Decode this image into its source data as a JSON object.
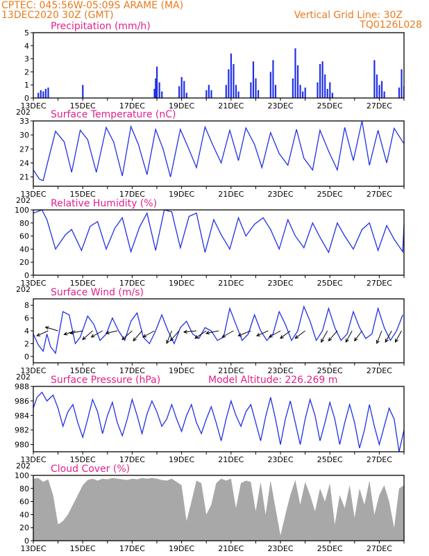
{
  "header": {
    "line1_left": "CPTEC:   045:56W-05:09S   ARAME (MA)",
    "line2_left": "13DEC2020 30Z (GMT)",
    "line1_right": "Vertical Grid Line: 30Z",
    "line2_right": "TQ0126L028"
  },
  "colors": {
    "header": "#e87a1e",
    "title": "#e0208c",
    "line": "#1f2fe6",
    "cloud": "#a8a8a8",
    "wind_arrow": "#000000"
  },
  "x_axis": {
    "start_day": 13,
    "end_day": 28,
    "tick_labels": [
      {
        "day": 13,
        "label": "13DEC"
      },
      {
        "day": 15,
        "label": "15DEC"
      },
      {
        "day": 17,
        "label": "17DEC"
      },
      {
        "day": 19,
        "label": "19DEC"
      },
      {
        "day": 21,
        "label": "21DEC"
      },
      {
        "day": 23,
        "label": "23DEC"
      },
      {
        "day": 25,
        "label": "25DEC"
      },
      {
        "day": 27,
        "label": "27DEC"
      }
    ],
    "year_fragment": "202"
  },
  "chart_data": [
    {
      "id": "precip",
      "type": "bar",
      "title": "Precipitation (mm/h)",
      "ylim": [
        0,
        5
      ],
      "yticks": [
        0,
        1,
        2,
        3,
        4,
        5
      ],
      "x": [
        13.2,
        13.3,
        13.4,
        13.5,
        13.6,
        15.0,
        17.9,
        17.95,
        18.0,
        18.1,
        18.2,
        18.9,
        19.0,
        19.1,
        19.2,
        20.0,
        20.1,
        20.2,
        20.8,
        20.9,
        21.0,
        21.1,
        21.2,
        21.3,
        21.8,
        21.9,
        22.0,
        22.1,
        22.6,
        22.7,
        22.8,
        23.5,
        23.6,
        23.7,
        23.8,
        23.9,
        24.0,
        24.5,
        24.6,
        24.7,
        24.8,
        24.9,
        25.0,
        25.1,
        26.8,
        26.9,
        27.0,
        27.1,
        27.2,
        27.8,
        27.9,
        28.0
      ],
      "values": [
        0.4,
        0.6,
        0.5,
        0.7,
        0.8,
        1.0,
        0.7,
        1.5,
        2.4,
        1.2,
        0.5,
        0.9,
        1.6,
        1.3,
        0.4,
        0.6,
        1.0,
        0.6,
        1.0,
        2.2,
        3.4,
        2.6,
        1.0,
        0.5,
        1.2,
        2.8,
        1.5,
        0.6,
        2.0,
        2.9,
        1.0,
        1.5,
        3.8,
        2.5,
        1.0,
        0.5,
        0.8,
        1.2,
        2.6,
        2.8,
        1.8,
        0.7,
        1.2,
        0.4,
        2.9,
        1.8,
        1.0,
        1.3,
        0.5,
        0.8,
        2.2,
        0.9
      ]
    },
    {
      "id": "temp",
      "type": "line",
      "title": "Surface Temperature (nC)",
      "ylim": [
        19,
        33
      ],
      "yticks": [
        21,
        24,
        27,
        30,
        33
      ],
      "x": [
        13.0,
        13.25,
        13.4,
        13.55,
        13.9,
        14.25,
        14.55,
        14.9,
        15.2,
        15.55,
        15.95,
        16.25,
        16.6,
        16.95,
        17.25,
        17.6,
        17.95,
        18.25,
        18.55,
        18.95,
        19.25,
        19.6,
        19.95,
        20.25,
        20.6,
        20.95,
        21.3,
        21.6,
        21.95,
        22.25,
        22.6,
        22.95,
        23.3,
        23.65,
        23.95,
        24.3,
        24.6,
        24.95,
        25.3,
        25.6,
        25.95,
        26.3,
        26.6,
        26.95,
        27.3,
        27.6,
        27.95,
        28.0
      ],
      "values": [
        22.5,
        20.5,
        20.2,
        23.5,
        30.8,
        28.5,
        22.0,
        31.0,
        29.0,
        22.0,
        31.6,
        28.5,
        21.2,
        31.8,
        28.0,
        21.5,
        31.2,
        27.0,
        21.0,
        31.2,
        27.5,
        23.0,
        31.7,
        28.0,
        24.0,
        31.0,
        24.5,
        31.5,
        28.0,
        23.0,
        30.5,
        26.0,
        23.5,
        31.2,
        25.0,
        22.5,
        31.0,
        26.5,
        22.5,
        31.6,
        24.5,
        33.0,
        23.5,
        31.0,
        24.0,
        31.4,
        28.5,
        28.2
      ]
    },
    {
      "id": "rh",
      "type": "line",
      "title": "Relative Humidity (%)",
      "ylim": [
        0,
        100
      ],
      "yticks": [
        0,
        20,
        40,
        60,
        80,
        100
      ],
      "x": [
        13.0,
        13.35,
        13.55,
        13.9,
        14.3,
        14.55,
        14.95,
        15.3,
        15.6,
        15.95,
        16.3,
        16.6,
        16.95,
        17.3,
        17.6,
        17.95,
        18.3,
        18.6,
        18.95,
        19.3,
        19.6,
        19.95,
        20.3,
        20.6,
        20.95,
        21.3,
        21.6,
        21.95,
        22.3,
        22.6,
        22.95,
        23.3,
        23.6,
        23.95,
        24.3,
        24.6,
        24.95,
        25.3,
        25.6,
        25.95,
        26.3,
        26.6,
        26.95,
        27.3,
        27.6,
        27.95,
        28.0
      ],
      "values": [
        95,
        100,
        85,
        40,
        62,
        70,
        38,
        75,
        82,
        40,
        72,
        88,
        36,
        74,
        95,
        38,
        100,
        97,
        42,
        90,
        95,
        35,
        85,
        62,
        40,
        88,
        60,
        78,
        88,
        70,
        40,
        85,
        60,
        42,
        80,
        58,
        35,
        80,
        60,
        40,
        70,
        80,
        38,
        76,
        55,
        36,
        78
      ]
    },
    {
      "id": "wind",
      "type": "line",
      "title": "Surface Wind (m/s)",
      "ylim": [
        -1,
        9
      ],
      "yticks": [
        0,
        2,
        4,
        6,
        8
      ],
      "x": [
        13.0,
        13.2,
        13.4,
        13.55,
        13.7,
        13.9,
        14.2,
        14.45,
        14.7,
        14.9,
        15.2,
        15.45,
        15.7,
        15.95,
        16.2,
        16.45,
        16.7,
        16.95,
        17.2,
        17.45,
        17.7,
        17.95,
        18.2,
        18.45,
        18.7,
        18.95,
        19.2,
        19.45,
        19.7,
        19.95,
        20.2,
        20.45,
        20.7,
        20.95,
        21.2,
        21.45,
        21.7,
        21.95,
        22.2,
        22.45,
        22.7,
        22.95,
        23.2,
        23.45,
        23.7,
        23.95,
        24.2,
        24.45,
        24.7,
        24.95,
        25.2,
        25.45,
        25.7,
        25.95,
        26.2,
        26.45,
        26.7,
        26.95,
        27.2,
        27.45,
        27.7,
        27.95
      ],
      "values": [
        3.5,
        1.8,
        0.8,
        3.5,
        1.5,
        0.5,
        7.0,
        6.5,
        2.0,
        3.0,
        6.3,
        5.0,
        2.5,
        3.5,
        6.0,
        4.0,
        2.5,
        5.5,
        6.8,
        3.0,
        2.0,
        4.0,
        6.5,
        4.0,
        2.0,
        4.5,
        5.5,
        3.5,
        2.8,
        4.5,
        4.0,
        2.5,
        3.0,
        7.5,
        5.0,
        2.5,
        3.5,
        6.5,
        4.0,
        2.5,
        3.5,
        7.0,
        5.0,
        2.5,
        4.0,
        7.8,
        5.5,
        2.5,
        4.0,
        7.5,
        4.5,
        2.5,
        3.5,
        7.0,
        4.5,
        2.8,
        3.5,
        7.5,
        4.5,
        2.5,
        4.0,
        6.5
      ],
      "vectors": [
        {
          "x": 13.6,
          "u": -0.9,
          "v": -0.4
        },
        {
          "x": 14.0,
          "u": -1.0,
          "v": 0.3
        },
        {
          "x": 14.7,
          "u": -0.9,
          "v": -0.3
        },
        {
          "x": 15.0,
          "u": -1.0,
          "v": -0.2
        },
        {
          "x": 15.4,
          "u": -0.8,
          "v": -0.7
        },
        {
          "x": 15.8,
          "u": -0.9,
          "v": -0.5
        },
        {
          "x": 16.4,
          "u": -0.9,
          "v": -0.2
        },
        {
          "x": 17.0,
          "u": -0.8,
          "v": -0.7
        },
        {
          "x": 17.4,
          "u": -0.7,
          "v": -0.8
        },
        {
          "x": 17.9,
          "u": -0.9,
          "v": -0.5
        },
        {
          "x": 18.6,
          "u": -0.4,
          "v": -1.0
        },
        {
          "x": 18.9,
          "u": -0.7,
          "v": -0.8
        },
        {
          "x": 19.6,
          "u": -1.0,
          "v": -0.1
        },
        {
          "x": 20.0,
          "u": -0.9,
          "v": -0.6
        },
        {
          "x": 20.5,
          "u": -1.0,
          "v": -0.2
        },
        {
          "x": 21.1,
          "u": -0.9,
          "v": -0.5
        },
        {
          "x": 21.8,
          "u": -1.0,
          "v": -0.4
        },
        {
          "x": 22.5,
          "u": -0.9,
          "v": -0.4
        },
        {
          "x": 23.0,
          "u": -0.9,
          "v": -0.5
        },
        {
          "x": 23.4,
          "u": -0.8,
          "v": -0.6
        },
        {
          "x": 24.0,
          "u": -0.8,
          "v": -0.6
        },
        {
          "x": 24.9,
          "u": -0.5,
          "v": -0.9
        },
        {
          "x": 25.3,
          "u": -0.7,
          "v": -0.8
        },
        {
          "x": 25.9,
          "u": -0.5,
          "v": -0.9
        },
        {
          "x": 26.3,
          "u": -0.6,
          "v": -0.8
        },
        {
          "x": 27.1,
          "u": -0.4,
          "v": -1.0
        },
        {
          "x": 27.5,
          "u": -0.5,
          "v": -0.9
        },
        {
          "x": 27.9,
          "u": -0.5,
          "v": -0.9
        }
      ]
    },
    {
      "id": "pressure",
      "type": "line",
      "title": "Surface Pressure (hPa)",
      "annotation": "Model Altitude: 226.269 m",
      "ylim": [
        979,
        988
      ],
      "yticks": [
        980,
        982,
        984,
        986,
        988
      ],
      "x": [
        13.0,
        13.15,
        13.35,
        13.55,
        13.8,
        14.0,
        14.2,
        14.4,
        14.6,
        14.8,
        15.0,
        15.2,
        15.4,
        15.6,
        15.8,
        16.0,
        16.2,
        16.4,
        16.6,
        16.8,
        17.0,
        17.2,
        17.4,
        17.6,
        17.8,
        18.0,
        18.2,
        18.4,
        18.6,
        18.8,
        19.0,
        19.2,
        19.4,
        19.6,
        19.8,
        20.0,
        20.2,
        20.4,
        20.6,
        20.8,
        21.0,
        21.2,
        21.4,
        21.6,
        21.8,
        22.0,
        22.2,
        22.4,
        22.6,
        22.8,
        23.0,
        23.2,
        23.4,
        23.6,
        23.8,
        24.0,
        24.2,
        24.4,
        24.6,
        24.8,
        25.0,
        25.2,
        25.4,
        25.6,
        25.8,
        26.0,
        26.2,
        26.4,
        26.6,
        26.8,
        27.0,
        27.2,
        27.4,
        27.6,
        27.8,
        28.0
      ],
      "values": [
        985.0,
        986.5,
        987.2,
        986.0,
        986.8,
        985.0,
        982.5,
        984.5,
        985.5,
        983.0,
        981.0,
        983.5,
        986.2,
        984.5,
        981.5,
        984.0,
        985.8,
        983.0,
        981.2,
        983.5,
        986.2,
        984.0,
        981.5,
        984.2,
        986.0,
        984.5,
        982.5,
        983.5,
        985.5,
        983.5,
        981.8,
        984.0,
        985.5,
        983.0,
        981.5,
        983.5,
        985.2,
        983.0,
        980.5,
        983.5,
        986.0,
        984.0,
        982.5,
        984.5,
        985.5,
        983.0,
        980.5,
        983.8,
        986.5,
        983.5,
        980.0,
        983.5,
        986.0,
        983.0,
        980.0,
        983.5,
        986.2,
        984.0,
        980.5,
        983.0,
        985.8,
        983.5,
        980.0,
        983.0,
        985.5,
        983.0,
        979.5,
        982.0,
        985.5,
        982.5,
        980.0,
        982.5,
        985.0,
        983.5,
        979.0,
        982.0
      ]
    },
    {
      "id": "cloud",
      "type": "area",
      "title": "Cloud Cover (%)",
      "ylim": [
        0,
        100
      ],
      "yticks": [
        0,
        20,
        40,
        60,
        80,
        100
      ],
      "x": [
        13.0,
        13.2,
        13.4,
        13.6,
        13.8,
        14.0,
        14.2,
        14.4,
        14.6,
        14.8,
        15.0,
        15.2,
        15.4,
        15.6,
        15.8,
        16.0,
        16.2,
        16.4,
        16.6,
        16.8,
        17.0,
        17.2,
        17.4,
        17.6,
        17.8,
        18.0,
        18.2,
        18.4,
        18.6,
        18.8,
        19.0,
        19.2,
        19.4,
        19.6,
        19.8,
        20.0,
        20.2,
        20.4,
        20.6,
        20.8,
        21.0,
        21.2,
        21.4,
        21.6,
        21.8,
        22.0,
        22.2,
        22.4,
        22.6,
        22.8,
        23.0,
        23.2,
        23.4,
        23.6,
        23.8,
        24.0,
        24.2,
        24.4,
        24.6,
        24.8,
        25.0,
        25.2,
        25.4,
        25.6,
        25.8,
        26.0,
        26.2,
        26.4,
        26.6,
        26.8,
        27.0,
        27.2,
        27.4,
        27.6,
        27.8,
        28.0
      ],
      "values": [
        95,
        96,
        90,
        94,
        70,
        25,
        30,
        40,
        55,
        70,
        85,
        93,
        95,
        92,
        95,
        94,
        96,
        95,
        94,
        93,
        95,
        94,
        96,
        95,
        96,
        95,
        93,
        92,
        95,
        90,
        85,
        30,
        60,
        92,
        88,
        40,
        55,
        88,
        95,
        92,
        95,
        50,
        88,
        92,
        90,
        45,
        90,
        40,
        92,
        50,
        8,
        40,
        70,
        93,
        55,
        90,
        70,
        45,
        80,
        60,
        88,
        25,
        70,
        50,
        85,
        35,
        80,
        55,
        92,
        40,
        70,
        85,
        60,
        20,
        80,
        85
      ]
    }
  ]
}
